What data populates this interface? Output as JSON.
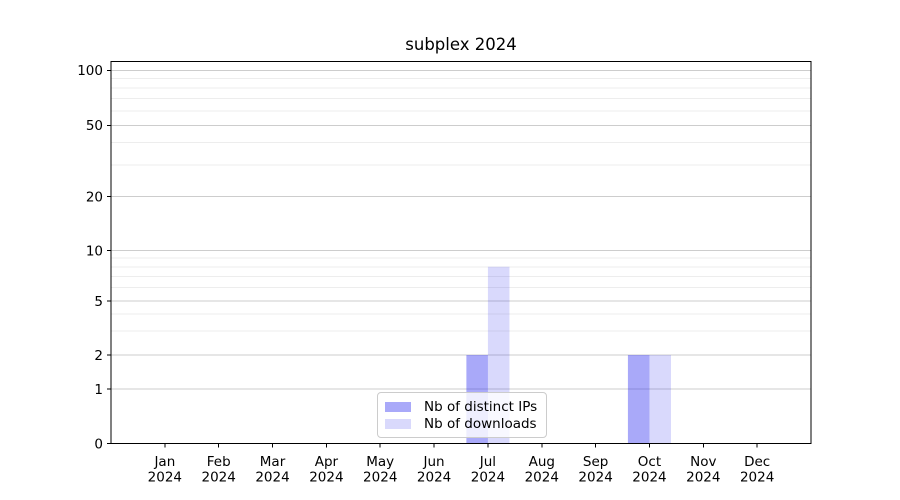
{
  "chart_data": {
    "type": "bar",
    "title": "subplex 2024",
    "categories": [
      "Jan",
      "Feb",
      "Mar",
      "Apr",
      "May",
      "Jun",
      "Jul",
      "Aug",
      "Sep",
      "Oct",
      "Nov",
      "Dec"
    ],
    "category_year": "2024",
    "series": [
      {
        "name": "Nb of distinct IPs",
        "color": "#1c1cf0",
        "opacity": 0.38,
        "values": [
          0,
          0,
          0,
          0,
          0,
          0,
          2,
          0,
          0,
          2,
          0,
          0
        ]
      },
      {
        "name": "Nb of downloads",
        "color": "#1c1cf0",
        "opacity": 0.17,
        "values": [
          0,
          0,
          0,
          0,
          0,
          0,
          8,
          0,
          0,
          2,
          0,
          0
        ]
      }
    ],
    "xlabel": "",
    "ylabel": "",
    "yscale": "symlog",
    "yticks": [
      0,
      1,
      2,
      5,
      10,
      20,
      50,
      100
    ],
    "ylim": [
      0,
      112
    ],
    "grid": {
      "horizontal": true,
      "vertical": false,
      "minor": true
    },
    "legend_position": "lower center"
  }
}
